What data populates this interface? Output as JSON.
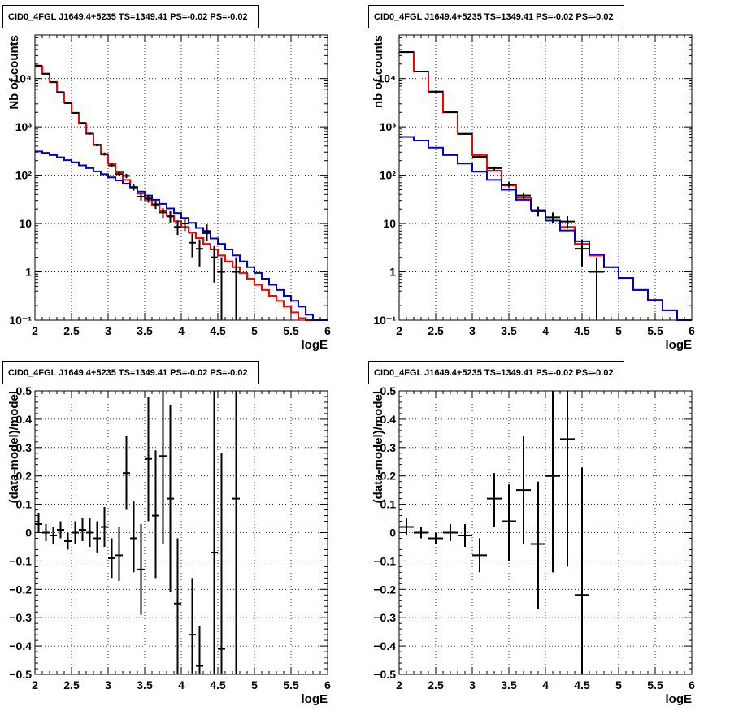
{
  "chart_data": [
    {
      "type": "histogram",
      "panel": "top-left",
      "title": "CID0_4FGL J1649.4+5235 TS=1349.41 PS=-0.02 PS=-0.02",
      "xlabel": "logE",
      "ylabel": "Nb of counts",
      "xlim": [
        2,
        6
      ],
      "ylim": [
        0.1,
        80000
      ],
      "yscale": "log",
      "grid": true,
      "xticks": [
        "2",
        "2.5",
        "3",
        "3.5",
        "4",
        "4.5",
        "5",
        "5.5",
        "6"
      ],
      "yticks": [
        "10⁻¹",
        "1",
        "10",
        "10²",
        "10³",
        "10⁴"
      ],
      "bin_edges": [
        2.0,
        2.1,
        2.2,
        2.3,
        2.4,
        2.5,
        2.6,
        2.7,
        2.8,
        2.9,
        3.0,
        3.1,
        3.2,
        3.3,
        3.4,
        3.5,
        3.6,
        3.7,
        3.8,
        3.9,
        4.0,
        4.1,
        4.2,
        4.3,
        4.4,
        4.5,
        4.6,
        4.7,
        4.8,
        4.9,
        5.0,
        5.1,
        5.2,
        5.3,
        5.4,
        5.5,
        5.6,
        5.7,
        5.8,
        5.9,
        6.0
      ],
      "series": [
        {
          "color": "#ff0000",
          "style": "step",
          "values": [
            18000,
            12500,
            8500,
            5200,
            3200,
            1950,
            1200,
            720,
            430,
            270,
            175,
            115,
            80,
            57,
            42,
            31,
            24,
            18.5,
            14.5,
            11.2,
            8.5,
            6.5,
            5.0,
            3.8,
            2.9,
            2.2,
            1.65,
            1.25,
            0.95,
            0.72,
            0.54,
            0.42,
            0.32,
            0.25,
            0.19,
            0.145,
            0.11,
            0.09,
            0.09,
            0.09
          ]
        },
        {
          "color": "#0000cc",
          "style": "step",
          "values": [
            310,
            290,
            260,
            235,
            205,
            185,
            160,
            140,
            120,
            105,
            90,
            78,
            67,
            56,
            46,
            38,
            31,
            25.5,
            20.5,
            16.5,
            13,
            10.3,
            8.1,
            6.3,
            4.9,
            3.8,
            2.9,
            2.2,
            1.65,
            1.25,
            0.95,
            0.72,
            0.54,
            0.42,
            0.32,
            0.25,
            0.19,
            0.13,
            0.09,
            0.09
          ]
        },
        {
          "color": "#000000",
          "style": "errorbars",
          "points": [
            {
              "x": 2.05,
              "y": 18500,
              "lo": 18200,
              "hi": 18800
            },
            {
              "x": 2.15,
              "y": 12600,
              "lo": 12400,
              "hi": 12800
            },
            {
              "x": 2.25,
              "y": 8400,
              "lo": 8250,
              "hi": 8550
            },
            {
              "x": 2.35,
              "y": 5250,
              "lo": 5130,
              "hi": 5370
            },
            {
              "x": 2.45,
              "y": 3100,
              "lo": 3010,
              "hi": 3190
            },
            {
              "x": 2.55,
              "y": 1950,
              "lo": 1880,
              "hi": 2020
            },
            {
              "x": 2.65,
              "y": 1210,
              "lo": 1160,
              "hi": 1260
            },
            {
              "x": 2.75,
              "y": 725,
              "lo": 690,
              "hi": 760
            },
            {
              "x": 2.85,
              "y": 420,
              "lo": 395,
              "hi": 445
            },
            {
              "x": 2.95,
              "y": 275,
              "lo": 255,
              "hi": 295
            },
            {
              "x": 3.05,
              "y": 160,
              "lo": 145,
              "hi": 175
            },
            {
              "x": 3.15,
              "y": 106,
              "lo": 95,
              "hi": 117
            },
            {
              "x": 3.25,
              "y": 97,
              "lo": 87,
              "hi": 107
            },
            {
              "x": 3.35,
              "y": 56,
              "lo": 48,
              "hi": 64
            },
            {
              "x": 3.45,
              "y": 36,
              "lo": 30,
              "hi": 42
            },
            {
              "x": 3.55,
              "y": 33,
              "lo": 27,
              "hi": 39
            },
            {
              "x": 3.65,
              "y": 25,
              "lo": 20,
              "hi": 30
            },
            {
              "x": 3.75,
              "y": 17,
              "lo": 13,
              "hi": 21
            },
            {
              "x": 3.85,
              "y": 14,
              "lo": 10.5,
              "hi": 18
            },
            {
              "x": 3.95,
              "y": 8.5,
              "lo": 5.8,
              "hi": 11.5
            },
            {
              "x": 4.05,
              "y": 10,
              "lo": 7,
              "hi": 13
            },
            {
              "x": 4.15,
              "y": 4,
              "lo": 2.0,
              "hi": 6.2
            },
            {
              "x": 4.25,
              "y": 3,
              "lo": 1.3,
              "hi": 4.7
            },
            {
              "x": 4.35,
              "y": 7,
              "lo": 4.4,
              "hi": 9.6
            },
            {
              "x": 4.45,
              "y": 2,
              "lo": 0.6,
              "hi": 3.4
            },
            {
              "x": 4.55,
              "y": 1,
              "lo": 0.1,
              "hi": 2.0
            },
            {
              "x": 4.75,
              "y": 1,
              "lo": 0.1,
              "hi": 2.0
            }
          ]
        }
      ]
    },
    {
      "type": "histogram",
      "panel": "top-right",
      "title": "CID0_4FGL J1649.4+5235 TS=1349.41 PS=-0.02 PS=-0.02",
      "xlabel": "logE",
      "ylabel": "nb of counts",
      "xlim": [
        2,
        6
      ],
      "ylim": [
        0.1,
        80000
      ],
      "yscale": "log",
      "grid": true,
      "xticks": [
        "2",
        "2.5",
        "3",
        "3.5",
        "4",
        "4.5",
        "5",
        "5.5",
        "6"
      ],
      "yticks": [
        "10⁻¹",
        "1",
        "10",
        "10²",
        "10³",
        "10⁴"
      ],
      "bin_edges": [
        2.0,
        2.2,
        2.4,
        2.6,
        2.8,
        3.0,
        3.2,
        3.4,
        3.6,
        3.8,
        4.0,
        4.2,
        4.4,
        4.6,
        4.8,
        5.0,
        5.2,
        5.4,
        5.6,
        5.8,
        6.0
      ],
      "series": [
        {
          "color": "#ff0000",
          "style": "step",
          "values": [
            35000,
            14000,
            5400,
            2000,
            720,
            260,
            125,
            62,
            34,
            19,
            11.5,
            8.5,
            3.8,
            2.2,
            1.25,
            0.75,
            0.42,
            0.26,
            0.16,
            0.09
          ]
        },
        {
          "color": "#0000cc",
          "style": "step",
          "values": [
            620,
            520,
            370,
            260,
            175,
            118,
            80,
            50,
            31,
            19,
            11.5,
            7.2,
            4.3,
            2.3,
            1.25,
            0.75,
            0.42,
            0.26,
            0.16,
            0.09
          ]
        },
        {
          "color": "#000000",
          "style": "errorbars",
          "points": [
            {
              "x": 2.1,
              "y": 35500,
              "lo": 35200,
              "hi": 35800
            },
            {
              "x": 2.3,
              "y": 14000,
              "lo": 13800,
              "hi": 14200
            },
            {
              "x": 2.5,
              "y": 5350,
              "lo": 5220,
              "hi": 5480
            },
            {
              "x": 2.7,
              "y": 2020,
              "lo": 1950,
              "hi": 2090
            },
            {
              "x": 2.9,
              "y": 715,
              "lo": 690,
              "hi": 740
            },
            {
              "x": 3.1,
              "y": 240,
              "lo": 225,
              "hi": 255
            },
            {
              "x": 3.3,
              "y": 140,
              "lo": 128,
              "hi": 152
            },
            {
              "x": 3.5,
              "y": 64,
              "lo": 56,
              "hi": 72
            },
            {
              "x": 3.7,
              "y": 38,
              "lo": 32,
              "hi": 44
            },
            {
              "x": 3.9,
              "y": 18,
              "lo": 14,
              "hi": 22
            },
            {
              "x": 4.1,
              "y": 13.5,
              "lo": 10,
              "hi": 17
            },
            {
              "x": 4.3,
              "y": 11,
              "lo": 7.8,
              "hi": 14.2
            },
            {
              "x": 4.5,
              "y": 3,
              "lo": 1.3,
              "hi": 4.7
            },
            {
              "x": 4.7,
              "y": 1,
              "lo": 0.1,
              "hi": 2.0
            }
          ]
        }
      ]
    },
    {
      "type": "scatter",
      "panel": "bottom-left",
      "title": "CID0_4FGL J1649.4+5235 TS=1349.41 PS=-0.02 PS=-0.02",
      "xlabel": "logE",
      "ylabel": "(data-model)/model",
      "xlim": [
        2,
        6
      ],
      "ylim": [
        -0.5,
        0.5
      ],
      "grid": true,
      "xticks": [
        "2",
        "2.5",
        "3",
        "3.5",
        "4",
        "4.5",
        "5",
        "5.5",
        "6"
      ],
      "yticks": [
        "−0.5",
        "−0.4",
        "−0.3",
        "−0.2",
        "−0.1",
        "0",
        "0.1",
        "0.2",
        "0.3",
        "0.4",
        "0.5"
      ],
      "series": [
        {
          "color": "#000000",
          "style": "errorbars",
          "xerr": 0.05,
          "points": [
            {
              "x": 2.05,
              "y": 0.03,
              "lo": 0.0,
              "hi": 0.07
            },
            {
              "x": 2.15,
              "y": 0.0,
              "lo": -0.03,
              "hi": 0.03
            },
            {
              "x": 2.25,
              "y": -0.01,
              "lo": -0.04,
              "hi": 0.02
            },
            {
              "x": 2.35,
              "y": 0.01,
              "lo": -0.02,
              "hi": 0.04
            },
            {
              "x": 2.45,
              "y": -0.03,
              "lo": -0.06,
              "hi": 0.0
            },
            {
              "x": 2.55,
              "y": 0.0,
              "lo": -0.04,
              "hi": 0.04
            },
            {
              "x": 2.65,
              "y": 0.01,
              "lo": -0.03,
              "hi": 0.05
            },
            {
              "x": 2.75,
              "y": 0.0,
              "lo": -0.05,
              "hi": 0.05
            },
            {
              "x": 2.85,
              "y": -0.02,
              "lo": -0.07,
              "hi": 0.04
            },
            {
              "x": 2.95,
              "y": 0.02,
              "lo": -0.05,
              "hi": 0.09
            },
            {
              "x": 3.05,
              "y": -0.09,
              "lo": -0.16,
              "hi": -0.02
            },
            {
              "x": 3.15,
              "y": -0.08,
              "lo": -0.17,
              "hi": 0.02
            },
            {
              "x": 3.25,
              "y": 0.21,
              "lo": 0.08,
              "hi": 0.34
            },
            {
              "x": 3.35,
              "y": -0.02,
              "lo": -0.14,
              "hi": 0.11
            },
            {
              "x": 3.45,
              "y": -0.13,
              "lo": -0.29,
              "hi": 0.03
            },
            {
              "x": 3.55,
              "y": 0.26,
              "lo": 0.04,
              "hi": 0.48
            },
            {
              "x": 3.65,
              "y": 0.06,
              "lo": -0.16,
              "hi": 0.29
            },
            {
              "x": 3.75,
              "y": 0.27,
              "lo": -0.04,
              "hi": 0.5
            },
            {
              "x": 3.85,
              "y": 0.12,
              "lo": -0.21,
              "hi": 0.45
            },
            {
              "x": 3.95,
              "y": -0.25,
              "lo": -0.5,
              "hi": -0.02
            },
            {
              "x": 4.15,
              "y": -0.36,
              "lo": -0.5,
              "hi": -0.16
            },
            {
              "x": 4.25,
              "y": -0.47,
              "lo": -0.5,
              "hi": -0.33
            },
            {
              "x": 4.45,
              "y": -0.07,
              "lo": -0.5,
              "hi": 0.5
            },
            {
              "x": 4.55,
              "y": -0.41,
              "lo": -0.5,
              "hi": 0.28
            },
            {
              "x": 4.75,
              "y": 0.12,
              "lo": -0.5,
              "hi": 0.5
            }
          ]
        }
      ]
    },
    {
      "type": "scatter",
      "panel": "bottom-right",
      "title": "CID0_4FGL J1649.4+5235 TS=1349.41 PS=-0.02 PS=-0.02",
      "xlabel": "logE",
      "ylabel": "(data-model)/model",
      "xlim": [
        2,
        6
      ],
      "ylim": [
        -0.5,
        0.5
      ],
      "grid": true,
      "xticks": [
        "2",
        "2.5",
        "3",
        "3.5",
        "4",
        "4.5",
        "5",
        "5.5",
        "6"
      ],
      "yticks": [
        "−0.5",
        "−0.4",
        "−0.3",
        "−0.2",
        "−0.1",
        "0",
        "0.1",
        "0.2",
        "0.3",
        "0.4",
        "0.5"
      ],
      "series": [
        {
          "color": "#000000",
          "style": "errorbars",
          "xerr": 0.1,
          "points": [
            {
              "x": 2.1,
              "y": 0.02,
              "lo": -0.01,
              "hi": 0.05
            },
            {
              "x": 2.3,
              "y": 0.0,
              "lo": -0.02,
              "hi": 0.02
            },
            {
              "x": 2.5,
              "y": -0.02,
              "lo": -0.04,
              "hi": 0.0
            },
            {
              "x": 2.7,
              "y": 0.0,
              "lo": -0.03,
              "hi": 0.03
            },
            {
              "x": 2.9,
              "y": -0.01,
              "lo": -0.05,
              "hi": 0.03
            },
            {
              "x": 3.1,
              "y": -0.08,
              "lo": -0.14,
              "hi": -0.02
            },
            {
              "x": 3.3,
              "y": 0.12,
              "lo": 0.02,
              "hi": 0.21
            },
            {
              "x": 3.5,
              "y": 0.04,
              "lo": -0.1,
              "hi": 0.17
            },
            {
              "x": 3.7,
              "y": 0.15,
              "lo": -0.04,
              "hi": 0.34
            },
            {
              "x": 3.9,
              "y": -0.04,
              "lo": -0.27,
              "hi": 0.18
            },
            {
              "x": 4.1,
              "y": 0.2,
              "lo": -0.14,
              "hi": 0.5
            },
            {
              "x": 4.3,
              "y": 0.33,
              "lo": -0.12,
              "hi": 0.5
            },
            {
              "x": 4.5,
              "y": -0.22,
              "lo": -0.5,
              "hi": 0.23
            }
          ]
        }
      ]
    }
  ]
}
